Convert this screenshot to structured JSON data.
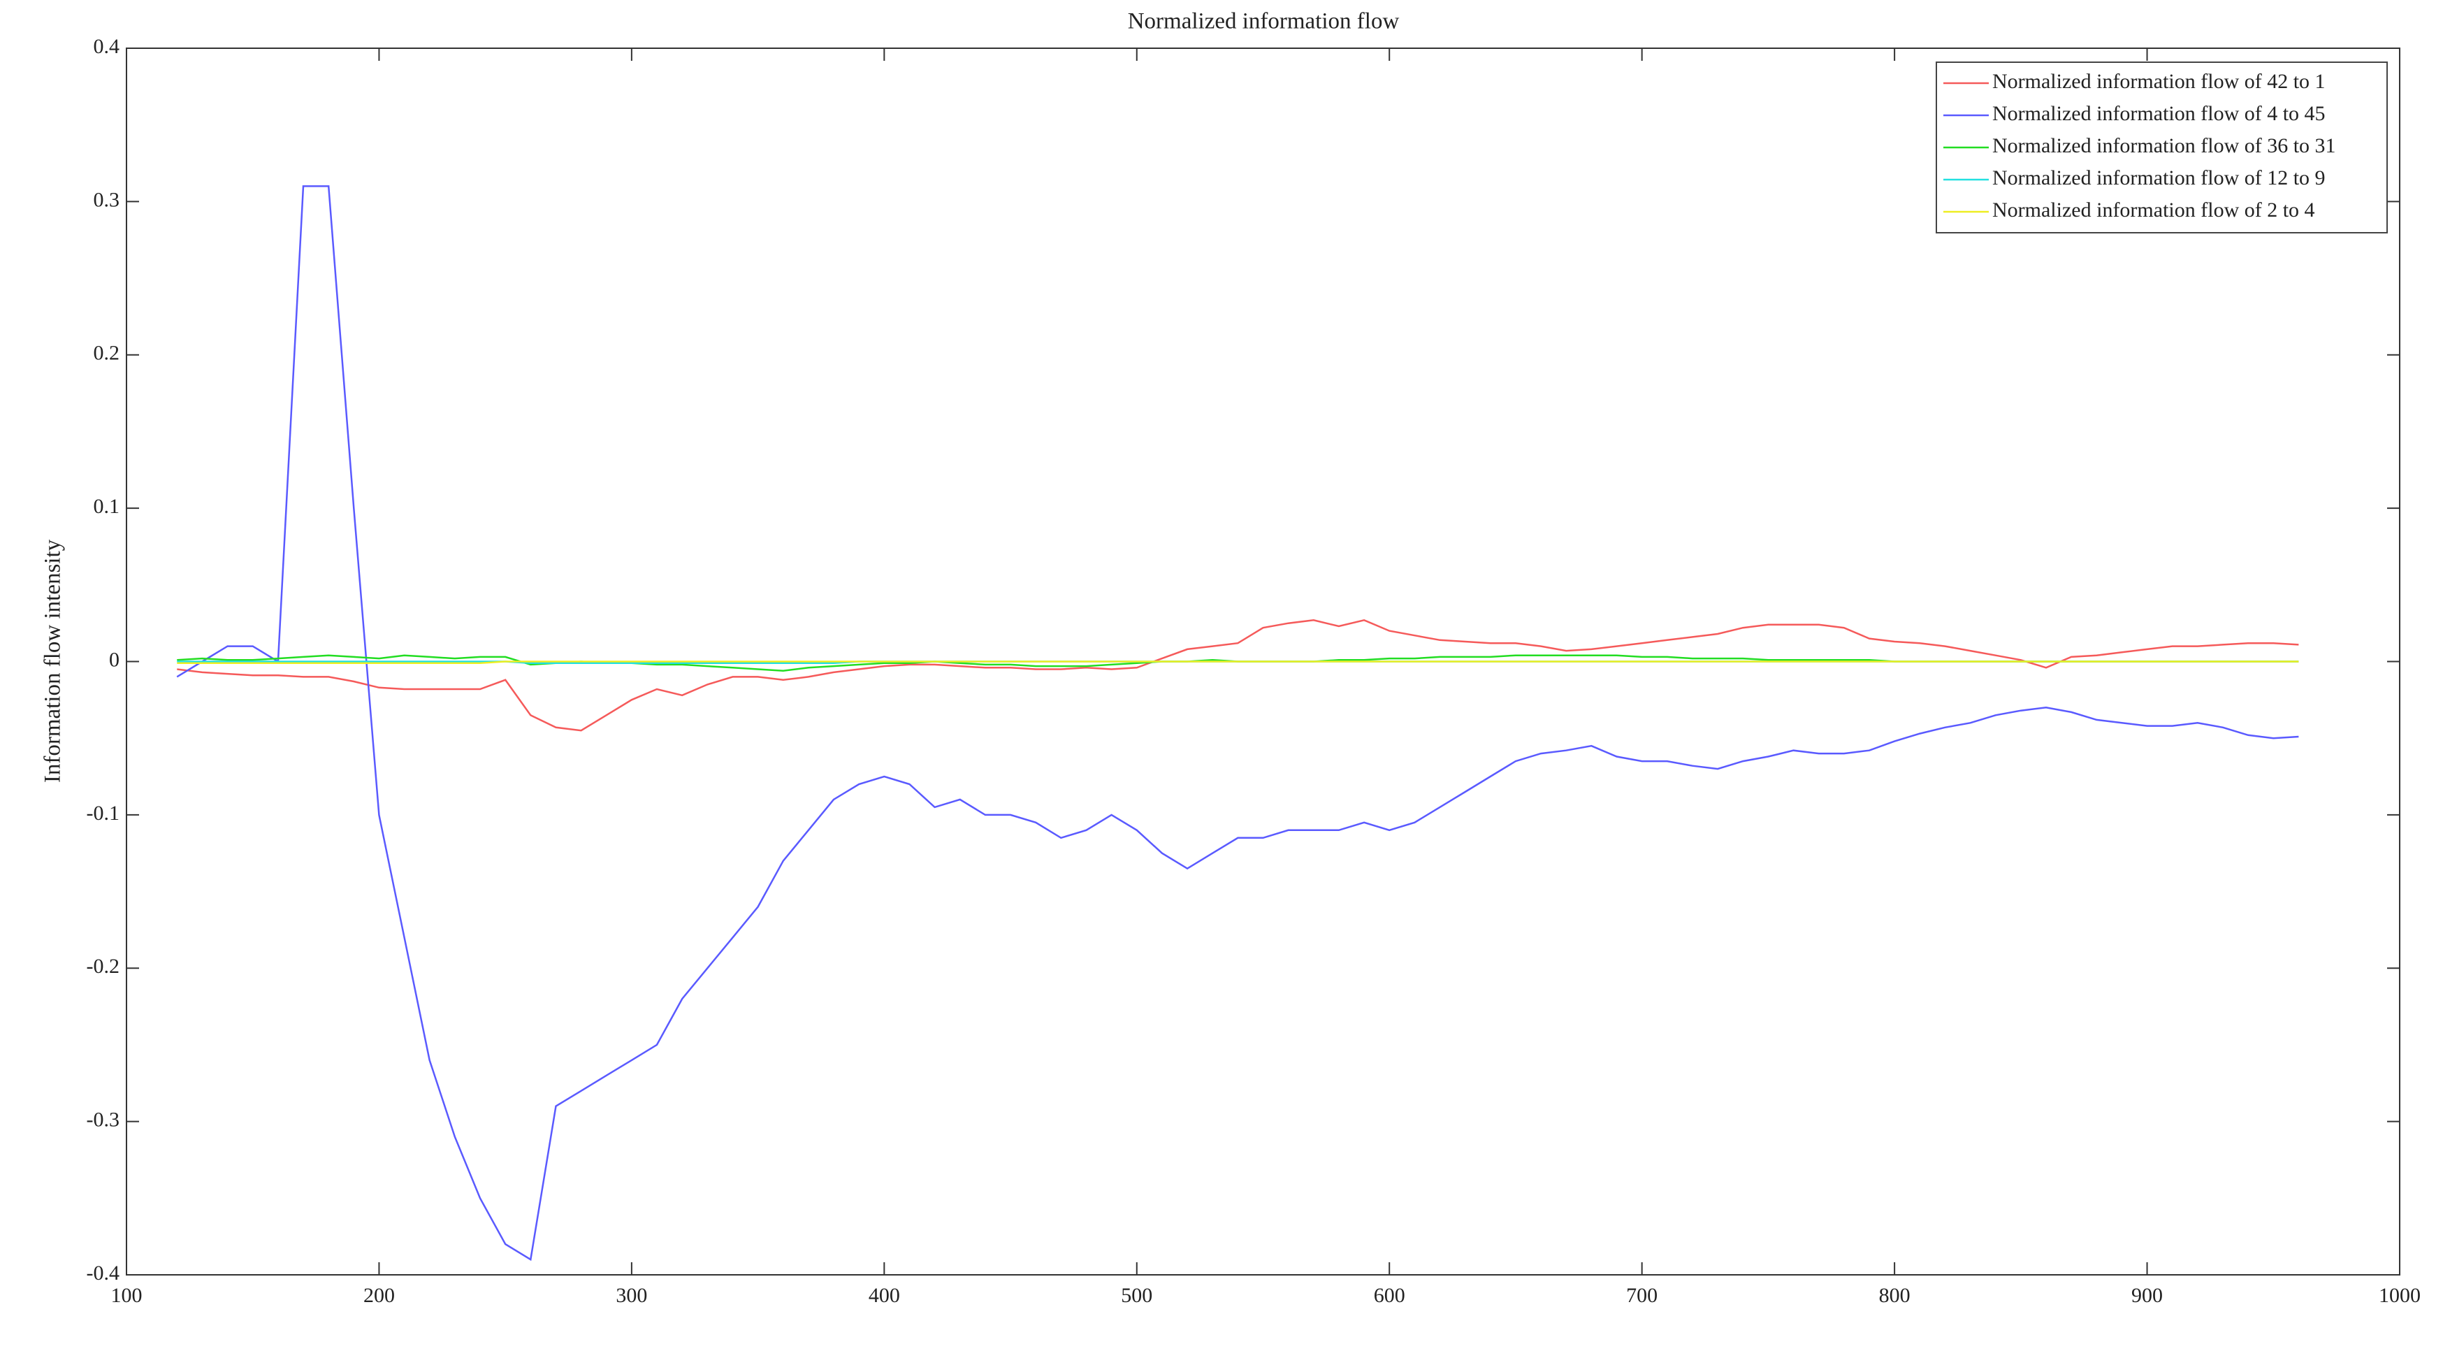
{
  "chart_data": {
    "type": "line",
    "title": "Normalized information flow",
    "y_label": "Information flow intensity",
    "x": [
      120,
      130,
      140,
      150,
      160,
      170,
      180,
      190,
      200,
      210,
      220,
      230,
      240,
      250,
      260,
      270,
      280,
      290,
      300,
      310,
      320,
      330,
      340,
      350,
      360,
      370,
      380,
      390,
      400,
      410,
      420,
      430,
      440,
      450,
      460,
      470,
      480,
      490,
      500,
      510,
      520,
      530,
      540,
      550,
      560,
      570,
      580,
      590,
      600,
      610,
      620,
      630,
      640,
      650,
      660,
      670,
      680,
      690,
      700,
      710,
      720,
      730,
      740,
      750,
      760,
      770,
      780,
      790,
      800,
      810,
      820,
      830,
      840,
      850,
      860,
      870,
      880,
      890,
      900,
      910,
      920,
      930,
      940,
      950,
      960
    ],
    "series": [
      {
        "name": "Normalized information flow of 42 to 1",
        "color": "#f55a5a",
        "values": [
          -0.005,
          -0.007,
          -0.008,
          -0.009,
          -0.009,
          -0.01,
          -0.01,
          -0.013,
          -0.017,
          -0.018,
          -0.018,
          -0.018,
          -0.018,
          -0.012,
          -0.035,
          -0.043,
          -0.045,
          -0.035,
          -0.025,
          -0.018,
          -0.022,
          -0.015,
          -0.01,
          -0.01,
          -0.012,
          -0.01,
          -0.007,
          -0.005,
          -0.003,
          -0.002,
          -0.002,
          -0.003,
          -0.004,
          -0.004,
          -0.005,
          -0.005,
          -0.004,
          -0.005,
          -0.004,
          0.002,
          0.008,
          0.01,
          0.012,
          0.022,
          0.025,
          0.027,
          0.023,
          0.027,
          0.02,
          0.017,
          0.014,
          0.013,
          0.012,
          0.012,
          0.01,
          0.007,
          0.008,
          0.01,
          0.012,
          0.014,
          0.016,
          0.018,
          0.022,
          0.024,
          0.024,
          0.024,
          0.022,
          0.015,
          0.013,
          0.012,
          0.01,
          0.007,
          0.004,
          0.001,
          -0.004,
          0.003,
          0.004,
          0.006,
          0.008,
          0.01,
          0.01,
          0.011,
          0.012,
          0.012,
          0.011
        ]
      },
      {
        "name": "Normalized information flow of 4 to 45",
        "color": "#5a5aff",
        "values": [
          -0.01,
          0.0,
          0.01,
          0.01,
          0.0,
          0.31,
          0.31,
          0.1,
          -0.1,
          -0.18,
          -0.26,
          -0.31,
          -0.35,
          -0.38,
          -0.39,
          -0.29,
          -0.28,
          -0.27,
          -0.26,
          -0.25,
          -0.22,
          -0.2,
          -0.18,
          -0.16,
          -0.13,
          -0.11,
          -0.09,
          -0.08,
          -0.075,
          -0.08,
          -0.095,
          -0.09,
          -0.1,
          -0.1,
          -0.105,
          -0.115,
          -0.11,
          -0.1,
          -0.11,
          -0.125,
          -0.135,
          -0.125,
          -0.115,
          -0.115,
          -0.11,
          -0.11,
          -0.11,
          -0.105,
          -0.11,
          -0.105,
          -0.095,
          -0.085,
          -0.075,
          -0.065,
          -0.06,
          -0.058,
          -0.055,
          -0.062,
          -0.065,
          -0.065,
          -0.068,
          -0.07,
          -0.065,
          -0.062,
          -0.058,
          -0.06,
          -0.06,
          -0.058,
          -0.052,
          -0.047,
          -0.043,
          -0.04,
          -0.035,
          -0.032,
          -0.03,
          -0.033,
          -0.038,
          -0.04,
          -0.042,
          -0.042,
          -0.04,
          -0.043,
          -0.048,
          -0.05,
          -0.049
        ]
      },
      {
        "name": "Normalized information flow of 36 to 31",
        "color": "#22dd22",
        "values": [
          0.001,
          0.002,
          0.001,
          0.001,
          0.002,
          0.003,
          0.004,
          0.003,
          0.002,
          0.004,
          0.003,
          0.002,
          0.003,
          0.003,
          -0.002,
          -0.001,
          0.0,
          -0.001,
          -0.001,
          -0.002,
          -0.002,
          -0.003,
          -0.004,
          -0.005,
          -0.006,
          -0.004,
          -0.003,
          -0.002,
          -0.001,
          -0.001,
          0.0,
          -0.001,
          -0.002,
          -0.002,
          -0.003,
          -0.003,
          -0.003,
          -0.002,
          -0.001,
          0.0,
          0.0,
          0.001,
          0.0,
          0.0,
          0.0,
          0.0,
          0.001,
          0.001,
          0.002,
          0.002,
          0.003,
          0.003,
          0.003,
          0.004,
          0.004,
          0.004,
          0.004,
          0.004,
          0.003,
          0.003,
          0.002,
          0.002,
          0.002,
          0.001,
          0.001,
          0.001,
          0.001,
          0.001,
          0.0,
          0.0,
          0.0,
          0.0,
          0.0,
          0.0,
          0.0,
          0.0,
          0.0,
          0.0,
          0.0,
          0.0,
          0.0,
          0.0,
          0.0,
          0.0,
          0.0
        ]
      },
      {
        "name": "Normalized information flow of 12 to 9",
        "color": "#22e0e0",
        "values": [
          0.0,
          0.0,
          0.0,
          0.0,
          0.0,
          0.0,
          0.0,
          0.0,
          0.0,
          0.0,
          0.0,
          0.0,
          0.0,
          0.0,
          -0.001,
          -0.001,
          -0.001,
          -0.001,
          -0.001,
          -0.001,
          -0.001,
          -0.001,
          -0.001,
          -0.001,
          -0.001,
          -0.001,
          -0.001,
          0.0,
          0.0,
          0.0,
          0.0,
          0.0,
          0.0,
          0.0,
          0.0,
          0.0,
          0.0,
          0.0,
          0.0,
          0.0,
          0.0,
          0.0,
          0.0,
          0.0,
          0.0,
          0.0,
          0.0,
          0.0,
          0.0,
          0.0,
          0.0,
          0.0,
          0.0,
          0.0,
          0.0,
          0.0,
          0.0,
          0.0,
          0.0,
          0.0,
          0.0,
          0.0,
          0.0,
          0.0,
          0.0,
          0.0,
          0.0,
          0.0,
          0.0,
          0.0,
          0.0,
          0.0,
          0.0,
          0.0,
          0.0,
          0.0,
          0.0,
          0.0,
          0.0,
          0.0,
          0.0,
          0.0,
          0.0,
          0.0,
          0.0
        ]
      },
      {
        "name": "Normalized information flow of 2 to 4",
        "color": "#eeee22",
        "values": [
          -0.001,
          -0.001,
          -0.001,
          -0.001,
          -0.001,
          -0.001,
          -0.001,
          -0.001,
          -0.001,
          -0.001,
          -0.001,
          -0.001,
          -0.001,
          0.0,
          0.0,
          0.0,
          0.0,
          0.0,
          0.0,
          0.0,
          0.0,
          0.0,
          0.0,
          0.0,
          0.0,
          0.0,
          0.0,
          0.0,
          0.0,
          0.0,
          0.0,
          0.0,
          0.0,
          0.0,
          0.0,
          0.0,
          0.0,
          0.0,
          0.0,
          0.0,
          0.0,
          0.0,
          0.0,
          0.0,
          0.0,
          0.0,
          0.0,
          0.0,
          0.0,
          0.0,
          0.0,
          0.0,
          0.0,
          0.0,
          0.0,
          0.0,
          0.0,
          0.0,
          0.0,
          0.0,
          0.0,
          0.0,
          0.0,
          0.0,
          0.0,
          0.0,
          0.0,
          0.0,
          0.0,
          0.0,
          0.0,
          0.0,
          0.0,
          0.0,
          0.0,
          0.0,
          0.0,
          0.0,
          0.0,
          0.0,
          0.0,
          0.0,
          0.0,
          0.0,
          0.0
        ]
      }
    ],
    "xlim": [
      100,
      1000
    ],
    "xticks": [
      100,
      200,
      300,
      400,
      500,
      600,
      700,
      800,
      900,
      1000
    ],
    "ylim": [
      -0.4,
      0.4
    ],
    "yticks": [
      -0.4,
      -0.3,
      -0.2,
      -0.1,
      0,
      0.1,
      0.2,
      0.3,
      0.4
    ],
    "grid": false,
    "legend": "northeast"
  }
}
